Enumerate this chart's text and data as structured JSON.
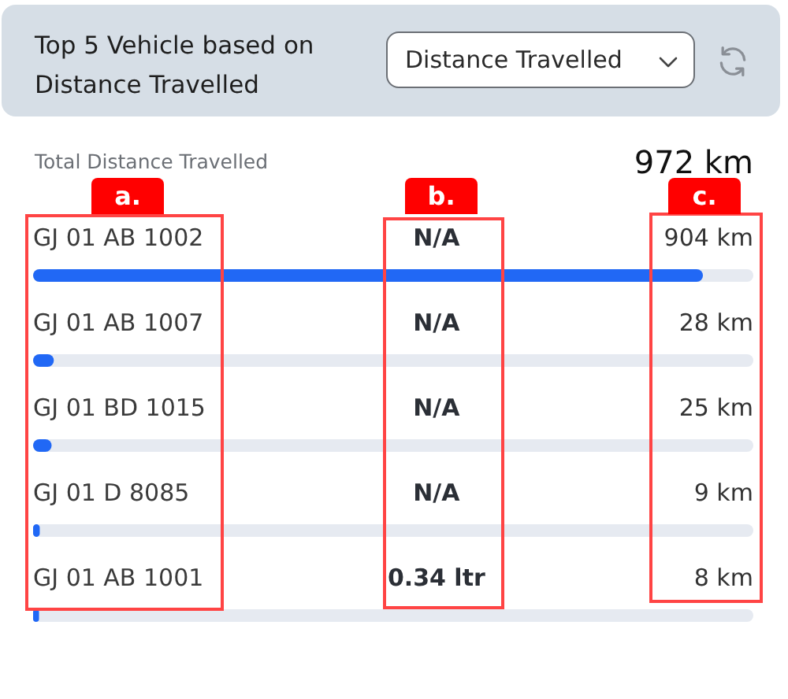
{
  "chart_data": {
    "type": "bar",
    "title": "Top 5 Vehicle based on Distance Travelled",
    "orientation": "horizontal",
    "categories": [
      "GJ 01 AB 1002",
      "GJ 01 AB 1007",
      "GJ 01 BD 1015",
      "GJ 01 D 8085",
      "GJ 01 AB 1001"
    ],
    "values": [
      904,
      28,
      25,
      9,
      8
    ],
    "color": "#2168f5",
    "value_labels": [
      "904 km",
      "28 km",
      "25 km",
      "9 km",
      "8 km"
    ],
    "xlim": [
      0,
      972
    ],
    "annotations": [
      "Distance Travelled",
      "Total Distance Travelled",
      "972 km",
      "a.",
      "b.",
      "c.",
      "N/A",
      "N/A",
      "N/A",
      "N/A",
      "0.34 ltr"
    ]
  }
}
